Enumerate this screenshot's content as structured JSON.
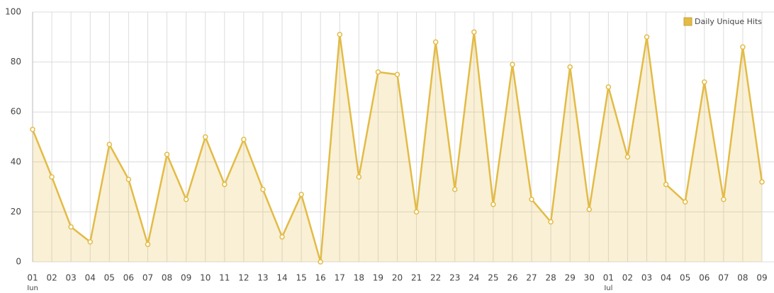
{
  "chart_data": {
    "type": "area",
    "series": [
      {
        "name": "Daily Unique Hits",
        "color": "#e3bb45",
        "values": [
          53,
          34,
          14,
          8,
          47,
          33,
          7,
          43,
          25,
          50,
          31,
          49,
          29,
          10,
          27,
          0,
          91,
          34,
          76,
          75,
          20,
          88,
          29,
          92,
          23,
          79,
          25,
          16,
          78,
          21,
          70,
          42,
          90,
          31,
          24,
          72,
          25,
          86,
          32
        ]
      }
    ],
    "categories": [
      "01",
      "02",
      "03",
      "04",
      "05",
      "06",
      "07",
      "08",
      "09",
      "10",
      "11",
      "12",
      "13",
      "14",
      "15",
      "16",
      "17",
      "18",
      "19",
      "20",
      "21",
      "22",
      "23",
      "24",
      "25",
      "26",
      "27",
      "28",
      "29",
      "30",
      "01",
      "02",
      "03",
      "04",
      "05",
      "06",
      "07",
      "08",
      "09"
    ],
    "months": [
      "Jun",
      null,
      null,
      null,
      null,
      null,
      null,
      null,
      null,
      null,
      null,
      null,
      null,
      null,
      null,
      null,
      null,
      null,
      null,
      null,
      null,
      null,
      null,
      null,
      null,
      null,
      null,
      null,
      null,
      null,
      "Jul",
      null,
      null,
      null,
      null,
      null,
      null,
      null,
      null
    ],
    "ylim": [
      0,
      100
    ],
    "yticks": [
      0,
      20,
      40,
      60,
      80,
      100
    ],
    "grid": true,
    "legend": "top-right"
  }
}
